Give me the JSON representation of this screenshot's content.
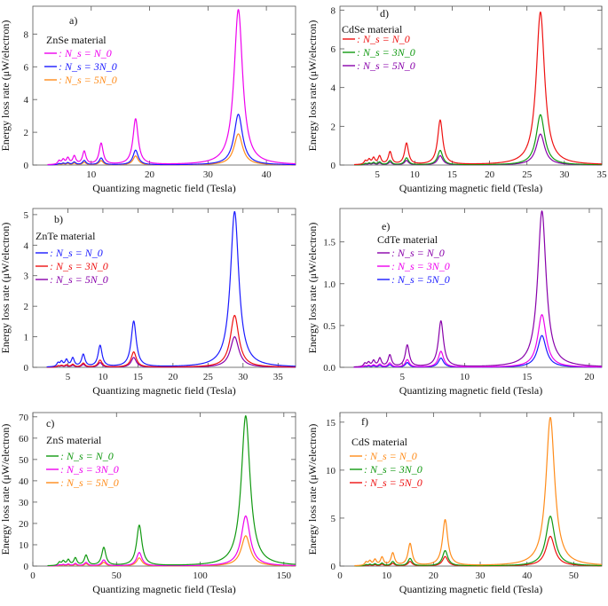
{
  "figure": {
    "colors": {
      "magenta": "#ee00ee",
      "blue": "#1a1aff",
      "orange": "#ff8c1a",
      "red": "#ee1111",
      "green": "#119911",
      "purple": "#8800aa"
    }
  },
  "chart_data": [
    {
      "id": "a",
      "type": "line",
      "tag": "a)",
      "material": "ZnSe material",
      "xlabel": "Quantizing magnetic field (Tesla)",
      "ylabel": "Energy loss rate (μW/electron)",
      "xlim": [
        0,
        45
      ],
      "ylim": [
        0,
        9.7
      ],
      "xticks": [
        10,
        20,
        30,
        40
      ],
      "yticks": [
        0,
        2,
        4,
        6,
        8
      ],
      "peak_x": [
        4.5,
        5.2,
        6.0,
        7.1,
        8.8,
        11.7,
        17.6,
        35.2
      ],
      "series": [
        {
          "name": "Ns = N0",
          "legend": ": N_s = N_0",
          "color": "#ee00ee",
          "peaks": [
            0.22,
            0.28,
            0.38,
            0.5,
            0.8,
            1.3,
            2.8,
            9.5
          ]
        },
        {
          "name": "Ns = 3N0",
          "legend": ": N_s = 3N_0",
          "color": "#1a1aff",
          "peaks": [
            0.07,
            0.09,
            0.12,
            0.16,
            0.26,
            0.42,
            0.9,
            3.1
          ]
        },
        {
          "name": "Ns = 5N0",
          "legend": ": N_s = 5N_0",
          "color": "#ff8c1a",
          "peaks": [
            0.05,
            0.06,
            0.08,
            0.1,
            0.16,
            0.26,
            0.55,
            1.9
          ]
        }
      ]
    },
    {
      "id": "d",
      "type": "line",
      "tag": "d)",
      "material": "CdSe material",
      "xlabel": "Quantizing magnetic field (Tesla)",
      "ylabel": "Energy loss rate (μW/electron)",
      "xlim": [
        0,
        35
      ],
      "ylim": [
        0,
        8.2
      ],
      "xticks": [
        5,
        10,
        15,
        20,
        25,
        30,
        35
      ],
      "yticks": [
        0,
        2,
        4,
        6,
        8
      ],
      "peak_x": [
        3.4,
        3.9,
        4.5,
        5.3,
        6.7,
        8.9,
        13.4,
        26.8
      ],
      "series": [
        {
          "name": "Ns = N0",
          "legend": ": N_s = N_0",
          "color": "#ee1111",
          "peaks": [
            0.18,
            0.24,
            0.32,
            0.42,
            0.65,
            1.1,
            2.3,
            7.9
          ]
        },
        {
          "name": "Ns = 3N0",
          "legend": ": N_s = 3N_0",
          "color": "#119911",
          "peaks": [
            0.06,
            0.08,
            0.11,
            0.14,
            0.22,
            0.36,
            0.75,
            2.6
          ]
        },
        {
          "name": "Ns = 5N0",
          "legend": ": N_s = 5N_0",
          "color": "#8800aa",
          "peaks": [
            0.04,
            0.05,
            0.07,
            0.09,
            0.14,
            0.23,
            0.48,
            1.6
          ]
        }
      ]
    },
    {
      "id": "b",
      "type": "line",
      "tag": "b)",
      "material": "ZnTe material",
      "xlabel": "Quantizing magnetic field (Tesla)",
      "ylabel": "Energy loss rate (μW/electron)",
      "xlim": [
        0,
        37.5
      ],
      "ylim": [
        0,
        5.2
      ],
      "xticks": [
        5,
        10,
        15,
        20,
        25,
        30,
        35
      ],
      "yticks": [
        0,
        1,
        2,
        3,
        4,
        5
      ],
      "peak_x": [
        3.6,
        4.1,
        4.8,
        5.7,
        7.2,
        9.6,
        14.4,
        28.8
      ],
      "series": [
        {
          "name": "Ns = N0",
          "legend": ": N_s = N_0",
          "color": "#1a1aff",
          "peaks": [
            0.12,
            0.16,
            0.22,
            0.28,
            0.4,
            0.7,
            1.5,
            5.1
          ]
        },
        {
          "name": "Ns = 3N0",
          "legend": ": N_s = 3N_0",
          "color": "#ee1111",
          "peaks": [
            0.04,
            0.05,
            0.07,
            0.09,
            0.13,
            0.23,
            0.5,
            1.7
          ]
        },
        {
          "name": "Ns = 5N0",
          "legend": ": N_s = 5N_0",
          "color": "#8800aa",
          "peaks": [
            0.03,
            0.04,
            0.05,
            0.06,
            0.09,
            0.15,
            0.32,
            1.0
          ]
        }
      ]
    },
    {
      "id": "e",
      "type": "line",
      "tag": "e)",
      "material": "CdTe material",
      "xlabel": "Quantizing magnetic field (Tesla)",
      "ylabel": "Energy loss rate (μW/electron)",
      "xlim": [
        0,
        21
      ],
      "ylim": [
        0,
        1.9
      ],
      "xticks": [
        5,
        10,
        15,
        20
      ],
      "yticks": [
        0.0,
        0.5,
        1.0,
        1.5
      ],
      "peak_x": [
        2.0,
        2.3,
        2.7,
        3.2,
        4.0,
        5.4,
        8.1,
        16.2
      ],
      "series": [
        {
          "name": "Ns = N0",
          "legend": ": N_s = N_0",
          "color": "#8800aa",
          "peaks": [
            0.04,
            0.05,
            0.07,
            0.1,
            0.14,
            0.26,
            0.55,
            1.87
          ]
        },
        {
          "name": "Ns = 3N0",
          "legend": ": N_s = 3N_0",
          "color": "#ee00ee",
          "peaks": [
            0.015,
            0.02,
            0.025,
            0.035,
            0.05,
            0.09,
            0.19,
            0.63
          ]
        },
        {
          "name": "Ns = 5N0",
          "legend": ": N_s = 5N_0",
          "color": "#1a1aff",
          "peaks": [
            0.01,
            0.012,
            0.015,
            0.02,
            0.03,
            0.055,
            0.11,
            0.38
          ]
        }
      ]
    },
    {
      "id": "c",
      "type": "line",
      "tag": "c)",
      "material": "ZnS material",
      "xlabel": "Quantizing magnetic field (Tesla)",
      "ylabel": "Energy loss rate (μW/electron)",
      "xlim": [
        0,
        157
      ],
      "ylim": [
        0,
        72
      ],
      "xticks": [
        0,
        50,
        100,
        150
      ],
      "yticks": [
        0,
        10,
        20,
        30,
        40,
        50,
        60,
        70
      ],
      "peak_x": [
        15.9,
        18.2,
        21.2,
        25.4,
        31.8,
        42.4,
        63.6,
        127.2
      ],
      "series": [
        {
          "name": "Ns = N0",
          "legend": ": N_s = N_0",
          "color": "#119911",
          "peaks": [
            1.5,
            2.0,
            2.6,
            3.5,
            4.8,
            8.5,
            19,
            70.5
          ]
        },
        {
          "name": "Ns = 3N0",
          "legend": ": N_s = 3N_0",
          "color": "#ee00ee",
          "peaks": [
            0.5,
            0.6,
            0.8,
            1.1,
            1.6,
            2.8,
            6.3,
            23.5
          ]
        },
        {
          "name": "Ns = 5N0",
          "legend": ": N_s = 5N_0",
          "color": "#ff8c1a",
          "peaks": [
            0.3,
            0.4,
            0.5,
            0.7,
            1.0,
            1.7,
            3.8,
            14.2
          ]
        }
      ]
    },
    {
      "id": "f",
      "type": "line",
      "tag": "f)",
      "material": "CdS material",
      "xlabel": "Quantizing magnetic field (Tesla)",
      "ylabel": "Energy loss rate (μW/electron)",
      "xlim": [
        0,
        56
      ],
      "ylim": [
        0,
        16
      ],
      "xticks": [
        0,
        10,
        20,
        30,
        40,
        50
      ],
      "yticks": [
        0,
        5,
        10,
        15
      ],
      "peak_x": [
        5.6,
        6.4,
        7.5,
        9.0,
        11.3,
        15.0,
        22.5,
        45.0
      ],
      "series": [
        {
          "name": "Ns = N0",
          "legend": ": N_s = N_0",
          "color": "#ff8c1a",
          "peaks": [
            0.35,
            0.45,
            0.6,
            0.85,
            1.3,
            2.3,
            4.8,
            15.5
          ]
        },
        {
          "name": "Ns = 3N0",
          "legend": ": N_s = 3N_0",
          "color": "#119911",
          "peaks": [
            0.12,
            0.15,
            0.2,
            0.28,
            0.45,
            0.78,
            1.6,
            5.2
          ]
        },
        {
          "name": "Ns = 5N0",
          "legend": ": N_s = 5N_0",
          "color": "#ee1111",
          "peaks": [
            0.07,
            0.09,
            0.12,
            0.17,
            0.27,
            0.47,
            0.98,
            3.1
          ]
        }
      ]
    }
  ]
}
